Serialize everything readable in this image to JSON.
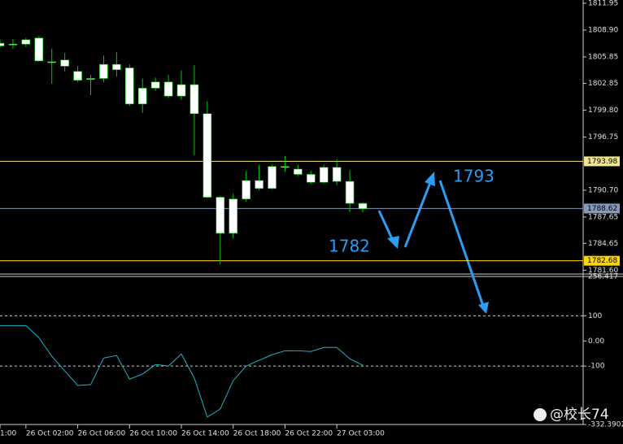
{
  "chart_data": [
    {
      "type": "candlestick",
      "color": "#ffffff",
      "wick_color": "#00c800",
      "categories": [
        "1:00",
        null,
        "26 Oct 02:00",
        null,
        null,
        null,
        "26 Oct 06:00",
        null,
        null,
        null,
        "26 Oct 10:00",
        null,
        null,
        null,
        "26 Oct 14:00",
        null,
        null,
        null,
        "26 Oct 18:00",
        null,
        null,
        null,
        "26 Oct 22:00",
        null,
        null,
        null,
        "27 Oct 03:00",
        null,
        null
      ],
      "open": [
        1807.4,
        1807.2,
        1807.3,
        1808.0,
        1805.3,
        1805.5,
        1804.2,
        1803.3,
        1803.4,
        1805.0,
        1804.6,
        1800.5,
        1802.3,
        1803.0,
        1801.4,
        1802.7,
        1799.4,
        1789.9,
        1785.8,
        1789.7,
        1791.8,
        1790.9,
        1793.4,
        1793.1,
        1792.5,
        1791.6,
        1793.3,
        1791.7,
        1789.2
      ],
      "high": [
        1807.8,
        1807.9,
        1808.0,
        1808.2,
        1806.8,
        1806.3,
        1804.8,
        1803.8,
        1806.0,
        1806.4,
        1805.0,
        1803.4,
        1803.5,
        1803.8,
        1804.3,
        1804.9,
        1800.8,
        1790.0,
        1790.3,
        1792.9,
        1793.6,
        1793.6,
        1794.6,
        1793.6,
        1792.9,
        1793.6,
        1794.2,
        1793.0,
        1789.3
      ],
      "low": [
        1806.9,
        1806.8,
        1807.0,
        1805.3,
        1802.8,
        1804.2,
        1803.0,
        1801.5,
        1803.0,
        1803.6,
        1800.3,
        1799.5,
        1802.0,
        1801.2,
        1801.0,
        1794.7,
        1789.8,
        1782.3,
        1785.2,
        1789.4,
        1790.7,
        1790.8,
        1792.8,
        1792.3,
        1791.4,
        1791.5,
        1791.3,
        1788.2,
        1788.2
      ],
      "close": [
        1807.1,
        1807.3,
        1807.8,
        1805.4,
        1805.2,
        1804.8,
        1803.2,
        1803.4,
        1805.0,
        1804.4,
        1800.5,
        1802.3,
        1803.0,
        1801.4,
        1802.7,
        1799.4,
        1789.9,
        1785.8,
        1789.7,
        1791.8,
        1790.9,
        1793.4,
        1793.3,
        1792.5,
        1791.6,
        1793.3,
        1791.7,
        1789.2,
        1788.6
      ],
      "ylim": [
        1781.17,
        1812.32
      ],
      "yticks": [
        1811.95,
        {
          "value": 1808.9,
          "label": "1808.90"
        },
        1805.85,
        1802.85,
        {
          "value": 1799.8,
          "label": "1799.80"
        },
        1796.75,
        {
          "value": 1790.7,
          "label": "1790.70"
        },
        1787.65,
        1784.65,
        {
          "value": 1781.6,
          "label": "1781.60"
        }
      ],
      "levels": [
        {
          "value": 1793.98,
          "color": "#f0e68c"
        },
        {
          "value": 1788.62,
          "color": "#8899bb"
        },
        {
          "value": 1782.68,
          "color": "#ffd700"
        }
      ],
      "annotations": [
        "1782",
        "1793"
      ]
    },
    {
      "type": "line",
      "color": "#20b2c8",
      "values": [
        61,
        61,
        61,
        13,
        -61,
        -119,
        -177,
        -174,
        -68,
        -58,
        -152,
        -132,
        -94,
        -100,
        -52,
        -148,
        -303,
        -271,
        -158,
        -100,
        -77,
        -55,
        -39,
        -39,
        -42,
        -26,
        -26,
        -71,
        -97
      ],
      "ylim": [
        -332.3902,
        256.417
      ],
      "yticks": [
        256.417,
        100,
        {
          "value": 0,
          "label": "0.00"
        },
        -100,
        -332.3902
      ],
      "levels": [
        100,
        -100
      ]
    }
  ],
  "watermark": "@校长74"
}
